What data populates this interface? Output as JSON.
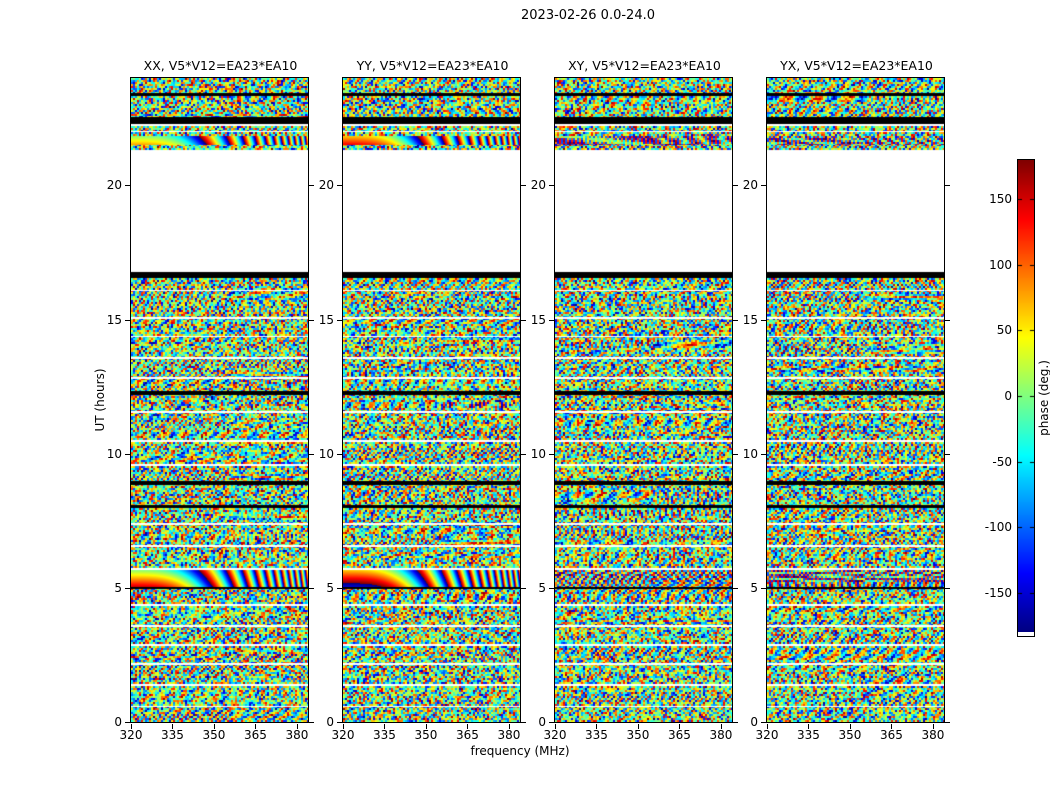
{
  "figure": {
    "title": "2023-02-26 0.0-24.0"
  },
  "panels": [
    {
      "title": "XX, V5*V12=EA23*EA10",
      "pol": "XX",
      "seed": 11,
      "smooth_bands": true
    },
    {
      "title": "YY, V5*V12=EA23*EA10",
      "pol": "YY",
      "seed": 23,
      "smooth_bands": true
    },
    {
      "title": "XY, V5*V12=EA23*EA10",
      "pol": "XY",
      "seed": 37,
      "smooth_bands": false
    },
    {
      "title": "YX, V5*V12=EA23*EA10",
      "pol": "YX",
      "seed": 51,
      "smooth_bands": false
    }
  ],
  "axes": {
    "xlabel": "frequency (MHz)",
    "ylabel": "UT (hours)",
    "x_ticks": [
      320,
      335,
      350,
      365,
      380
    ],
    "x_range": [
      320,
      384
    ],
    "y_ticks": [
      0,
      5,
      10,
      15,
      20
    ],
    "y_range": [
      0,
      24
    ]
  },
  "colorbar": {
    "label": "phase (deg.)",
    "ticks": [
      150,
      100,
      50,
      0,
      -50,
      -100,
      -150
    ],
    "range": [
      -180,
      180
    ],
    "colormap": "jet"
  },
  "chart_data": {
    "type": "heatmap",
    "title": "2023-02-26 0.0-24.0",
    "subplot_titles": [
      "XX, V5*V12=EA23*EA10",
      "YY, V5*V12=EA23*EA10",
      "XY, V5*V12=EA23*EA10",
      "YX, V5*V12=EA23*EA10"
    ],
    "xlabel": "frequency (MHz)",
    "ylabel": "UT (hours)",
    "xlim": [
      320,
      384
    ],
    "ylim": [
      0,
      24
    ],
    "value_label": "phase (deg.)",
    "value_range": [
      -180,
      180
    ],
    "colormap": "jet",
    "legend_position": "right-colorbar",
    "grid": false,
    "bands": [
      [
        "noise",
        24.0,
        23.44
      ],
      [
        "black",
        23.44,
        23.33
      ],
      [
        "noise",
        23.33,
        22.55
      ],
      [
        "black",
        22.55,
        22.28
      ],
      [
        "white",
        22.28,
        22.2
      ],
      [
        "noise",
        22.2,
        22.02
      ],
      [
        "white",
        22.02,
        21.98
      ],
      [
        "noise",
        21.98,
        21.84
      ],
      [
        "rainbow",
        21.84,
        21.5
      ],
      [
        "noise",
        21.5,
        21.32
      ],
      [
        "white",
        21.32,
        16.78
      ],
      [
        "black",
        16.78,
        16.55
      ],
      [
        "noise",
        16.55,
        16.1
      ],
      [
        "white",
        16.1,
        16.05
      ],
      [
        "noise",
        16.05,
        15.1
      ],
      [
        "white",
        15.1,
        15.03
      ],
      [
        "noise",
        15.03,
        14.4
      ],
      [
        "white",
        14.4,
        14.33
      ],
      [
        "noise",
        14.33,
        13.6
      ],
      [
        "white",
        13.6,
        13.53
      ],
      [
        "noise",
        13.53,
        12.85
      ],
      [
        "white",
        12.85,
        12.78
      ],
      [
        "noise",
        12.78,
        12.32
      ],
      [
        "black",
        12.32,
        12.17
      ],
      [
        "noise",
        12.17,
        11.6
      ],
      [
        "white",
        11.6,
        11.53
      ],
      [
        "noise",
        11.53,
        10.5
      ],
      [
        "white",
        10.5,
        10.43
      ],
      [
        "noise",
        10.43,
        9.6
      ],
      [
        "white",
        9.6,
        9.53
      ],
      [
        "noise",
        9.53,
        9.0
      ],
      [
        "black",
        9.0,
        8.82
      ],
      [
        "noise",
        8.82,
        8.1
      ],
      [
        "black",
        8.1,
        7.96
      ],
      [
        "noise",
        7.96,
        7.4
      ],
      [
        "white",
        7.4,
        7.33
      ],
      [
        "noise",
        7.33,
        6.6
      ],
      [
        "white",
        6.6,
        6.53
      ],
      [
        "noise",
        6.53,
        5.73
      ],
      [
        "white",
        5.73,
        5.66
      ],
      [
        "rainbow",
        5.66,
        5.03
      ],
      [
        "black",
        5.03,
        4.95
      ],
      [
        "noise",
        4.95,
        4.4
      ],
      [
        "white",
        4.4,
        4.33
      ],
      [
        "noise",
        4.33,
        3.6
      ],
      [
        "white",
        3.6,
        3.53
      ],
      [
        "noise",
        3.53,
        2.9
      ],
      [
        "white",
        2.9,
        2.83
      ],
      [
        "noise",
        2.83,
        2.2
      ],
      [
        "white",
        2.2,
        2.13
      ],
      [
        "noise",
        2.13,
        1.4
      ],
      [
        "white",
        1.4,
        1.34
      ],
      [
        "noise",
        1.34,
        0.6
      ],
      [
        "white",
        0.6,
        0.55
      ],
      [
        "noise",
        0.55,
        0.0
      ]
    ]
  }
}
